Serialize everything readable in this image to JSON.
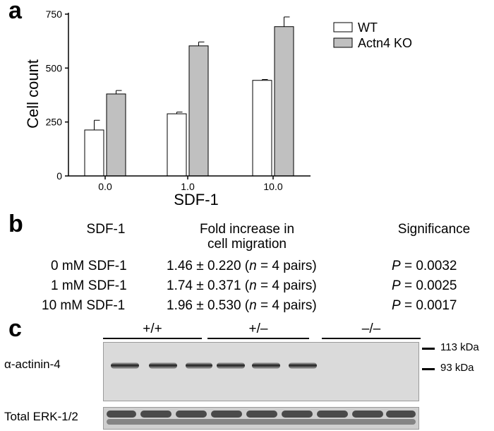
{
  "panel_a": {
    "label": "a",
    "chart_data": {
      "type": "bar",
      "categories": [
        "0.0",
        "1.0",
        "10.0"
      ],
      "series": [
        {
          "name": "WT",
          "values": [
            213,
            288,
            443
          ],
          "errors": [
            45,
            8,
            4
          ],
          "color": "#ffffff"
        },
        {
          "name": "Actn4 KO",
          "values": [
            380,
            603,
            692
          ],
          "errors": [
            16,
            18,
            45
          ],
          "color": "#c0c0c0"
        }
      ],
      "ylim": [
        0,
        750
      ],
      "yticks": [
        "0",
        "250",
        "500",
        "750"
      ],
      "ylabel": "Cell count",
      "xlabel": "SDF-1",
      "legend_position": "top-right"
    }
  },
  "panel_b": {
    "label": "b",
    "headers": {
      "col1": "SDF-1",
      "col2_line1": "Fold increase in",
      "col2_line2": "cell migration",
      "col3": "Significance"
    },
    "rows": [
      {
        "dose": "0 mM SDF-1",
        "fold": "1.46 ± 0.220 (",
        "n_var": "n",
        "n_rest": " = 4 pairs)",
        "p_var": "P",
        "p_val": " = 0.0032"
      },
      {
        "dose": "1 mM SDF-1",
        "fold": "1.74 ± 0.371 (",
        "n_var": "n",
        "n_rest": " = 4 pairs)",
        "p_var": "P",
        "p_val": " = 0.0025"
      },
      {
        "dose": "10 mM SDF-1",
        "fold": "1.96 ± 0.530 (",
        "n_var": "n",
        "n_rest": " = 4 pairs)",
        "p_var": "P",
        "p_val": " = 0.0017"
      }
    ]
  },
  "panel_c": {
    "label": "c",
    "genotypes": [
      "+/+",
      "+/–",
      "–/–"
    ],
    "markers": [
      "113 kDa",
      "93 kDa"
    ],
    "row_labels": [
      "α-actinin-4",
      "Total ERK-1/2"
    ]
  }
}
